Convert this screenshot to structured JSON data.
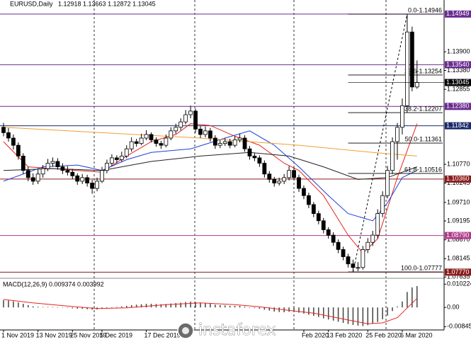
{
  "chart_data": [
    {
      "type": "candlestick",
      "title": "EURUSD,Daily",
      "subtitle": "1.12918 1.13663 1.12872 1.13045",
      "categories": [
        "1 Nov 2019",
        null,
        null,
        null,
        null,
        null,
        null,
        "13 Nov 2019",
        null,
        null,
        null,
        null,
        null,
        null,
        "25 Nov 2019",
        null,
        null,
        null,
        null,
        null,
        "5 Dec 2019",
        null,
        null,
        null,
        null,
        null,
        null,
        null,
        null,
        "17 Dec 2019",
        null,
        null,
        null,
        null,
        null,
        null,
        null,
        null,
        null,
        null,
        null,
        null,
        null,
        null,
        null,
        null,
        null,
        null,
        null,
        null,
        null,
        null,
        null,
        null,
        null,
        null,
        null,
        null,
        null,
        null,
        null,
        "Feb 2020",
        null,
        null,
        null,
        null,
        "13 Feb 2020",
        null,
        null,
        null,
        null,
        null,
        null,
        null,
        "25 Feb 2020",
        null,
        null,
        null,
        null,
        null,
        null,
        "6 Mar 2020",
        null,
        null,
        null
      ],
      "candles": [
        [
          1.118,
          1.1192,
          1.1155,
          1.1165
        ],
        [
          1.1165,
          1.1178,
          1.114,
          1.115
        ],
        [
          1.115,
          1.116,
          1.1118,
          1.113
        ],
        [
          1.113,
          1.1138,
          1.109,
          1.11
        ],
        [
          1.11,
          1.1108,
          1.105,
          1.106
        ],
        [
          1.106,
          1.107,
          1.103,
          1.104
        ],
        [
          1.104,
          1.1052,
          1.102,
          1.103
        ],
        [
          1.103,
          1.1062,
          1.1022,
          1.105
        ],
        [
          1.105,
          1.1075,
          1.104,
          1.1065
        ],
        [
          1.1065,
          1.1092,
          1.1058,
          1.108
        ],
        [
          1.108,
          1.1096,
          1.107,
          1.1085
        ],
        [
          1.1085,
          1.1094,
          1.1062,
          1.107
        ],
        [
          1.107,
          1.108,
          1.105,
          1.106
        ],
        [
          1.106,
          1.1072,
          1.1046,
          1.1055
        ],
        [
          1.1055,
          1.1064,
          1.1036,
          1.1045
        ],
        [
          1.1045,
          1.1052,
          1.102,
          1.103
        ],
        [
          1.103,
          1.105,
          1.1022,
          1.104
        ],
        [
          1.104,
          1.1048,
          1.1015,
          1.1025
        ],
        [
          1.1025,
          1.1034,
          1.0995,
          1.101
        ],
        [
          1.101,
          1.104,
          1.1002,
          1.103
        ],
        [
          1.103,
          1.107,
          1.1025,
          1.106
        ],
        [
          1.106,
          1.109,
          1.1052,
          1.108
        ],
        [
          1.108,
          1.1105,
          1.1072,
          1.1095
        ],
        [
          1.1095,
          1.1102,
          1.108,
          1.109
        ],
        [
          1.109,
          1.1112,
          1.1084,
          1.11
        ],
        [
          1.11,
          1.113,
          1.1094,
          1.112
        ],
        [
          1.112,
          1.1152,
          1.1112,
          1.114
        ],
        [
          1.114,
          1.1148,
          1.1126,
          1.1135
        ],
        [
          1.1135,
          1.1162,
          1.113,
          1.115
        ],
        [
          1.115,
          1.1172,
          1.1144,
          1.116
        ],
        [
          1.116,
          1.1166,
          1.1138,
          1.1145
        ],
        [
          1.1145,
          1.1152,
          1.1126,
          1.1135
        ],
        [
          1.1135,
          1.1142,
          1.112,
          1.113
        ],
        [
          1.113,
          1.116,
          1.1124,
          1.115
        ],
        [
          1.115,
          1.118,
          1.1144,
          1.117
        ],
        [
          1.117,
          1.119,
          1.1162,
          1.118
        ],
        [
          1.118,
          1.1205,
          1.1172,
          1.1195
        ],
        [
          1.1195,
          1.1228,
          1.1188,
          1.1215
        ],
        [
          1.1215,
          1.124,
          1.1205,
          1.1225
        ],
        [
          1.1225,
          1.1232,
          1.1165,
          1.1175
        ],
        [
          1.1175,
          1.1184,
          1.115,
          1.116
        ],
        [
          1.116,
          1.1182,
          1.1152,
          1.117
        ],
        [
          1.117,
          1.1178,
          1.114,
          1.115
        ],
        [
          1.115,
          1.1158,
          1.112,
          1.113
        ],
        [
          1.113,
          1.1145,
          1.1122,
          1.1135
        ],
        [
          1.1135,
          1.115,
          1.1128,
          1.114
        ],
        [
          1.114,
          1.1148,
          1.1122,
          1.113
        ],
        [
          1.113,
          1.1155,
          1.1124,
          1.1145
        ],
        [
          1.1145,
          1.1162,
          1.1138,
          1.115
        ],
        [
          1.115,
          1.1158,
          1.1112,
          1.112
        ],
        [
          1.112,
          1.1128,
          1.109,
          1.11
        ],
        [
          1.11,
          1.1108,
          1.1086,
          1.1095
        ],
        [
          1.1095,
          1.1102,
          1.107,
          1.108
        ],
        [
          1.108,
          1.1088,
          1.104,
          1.105
        ],
        [
          1.105,
          1.1058,
          1.1026,
          1.1035
        ],
        [
          1.1035,
          1.1042,
          1.1015,
          1.1025
        ],
        [
          1.1025,
          1.104,
          1.1018,
          1.103
        ],
        [
          1.103,
          1.105,
          1.1022,
          1.104
        ],
        [
          1.104,
          1.1072,
          1.1032,
          1.106
        ],
        [
          1.106,
          1.1068,
          1.1032,
          1.104
        ],
        [
          1.104,
          1.1048,
          1.1,
          1.101
        ],
        [
          1.101,
          1.1018,
          1.098,
          1.099
        ],
        [
          1.099,
          1.0998,
          1.0955,
          1.0965
        ],
        [
          1.0965,
          1.0972,
          1.093,
          1.094
        ],
        [
          1.094,
          1.0948,
          1.091,
          1.092
        ],
        [
          1.092,
          1.0928,
          1.0885,
          1.0895
        ],
        [
          1.0895,
          1.0902,
          1.087,
          1.088
        ],
        [
          1.088,
          1.0888,
          1.085,
          1.086
        ],
        [
          1.086,
          1.0868,
          1.083,
          1.084
        ],
        [
          1.084,
          1.0848,
          1.081,
          1.082
        ],
        [
          1.082,
          1.0828,
          1.079,
          1.08
        ],
        [
          1.08,
          1.0812,
          1.0778,
          1.079
        ],
        [
          1.079,
          1.0805,
          1.078,
          1.079
        ],
        [
          1.079,
          1.085,
          1.0784,
          1.084
        ],
        [
          1.084,
          1.0872,
          1.083,
          1.086
        ],
        [
          1.086,
          1.0892,
          1.085,
          1.088
        ],
        [
          1.088,
          1.0952,
          1.087,
          1.094
        ],
        [
          1.094,
          1.1002,
          1.093,
          1.099
        ],
        [
          1.099,
          1.1072,
          1.0982,
          1.106
        ],
        [
          1.106,
          1.1152,
          1.105,
          1.114
        ],
        [
          1.114,
          1.1192,
          1.109,
          1.118
        ],
        [
          1.118,
          1.126,
          1.116,
          1.124
        ],
        [
          1.124,
          1.1495,
          1.122,
          1.1445
        ],
        [
          1.1445,
          1.146,
          1.128,
          1.1292
        ],
        [
          1.1292,
          1.1366,
          1.1287,
          1.1305
        ]
      ],
      "up_color": "#ffffff",
      "down_color": "#000000",
      "series": [
        {
          "color": "#e8231e",
          "x": [
            0,
            5,
            10,
            15,
            20,
            25,
            30,
            35,
            38,
            42,
            47,
            52,
            57,
            60,
            65,
            70,
            73,
            76,
            80,
            84
          ],
          "values": [
            1.114,
            1.107,
            1.1065,
            1.106,
            1.1055,
            1.11,
            1.114,
            1.116,
            1.119,
            1.1185,
            1.1155,
            1.113,
            1.108,
            1.106,
            1.099,
            1.088,
            1.083,
            1.087,
            1.104,
            1.119
          ]
        },
        {
          "color": "#1f3fd6",
          "x": [
            0,
            8,
            15,
            20,
            25,
            30,
            38,
            45,
            50,
            55,
            60,
            66,
            70,
            75,
            78,
            81,
            84
          ],
          "values": [
            1.103,
            1.107,
            1.1075,
            1.106,
            1.109,
            1.111,
            1.112,
            1.115,
            1.117,
            1.113,
            1.107,
            1.099,
            1.094,
            1.092,
            1.097,
            1.104,
            1.106
          ]
        },
        {
          "color": "#222222",
          "x": [
            0,
            10,
            20,
            30,
            40,
            50,
            58,
            65,
            72,
            78,
            84
          ],
          "values": [
            1.106,
            1.1065,
            1.106,
            1.1085,
            1.11,
            1.111,
            1.11,
            1.107,
            1.1035,
            1.104,
            1.107
          ]
        },
        {
          "color": "#f0a030",
          "x": [
            0,
            20,
            40,
            60,
            75,
            84
          ],
          "values": [
            1.118,
            1.1165,
            1.115,
            1.113,
            1.111,
            1.11
          ]
        }
      ],
      "ylim": [
        1.0762,
        1.1534
      ],
      "yticks": [
        {
          "value": 1.139,
          "label": "1.13900"
        },
        {
          "value": 1.1338,
          "label": "1.13380"
        },
        1.12855,
        {
          "value": 1.1077,
          "label": "1.10770"
        },
        1.10245,
        {
          "value": 1.0971,
          "label": "1.09710"
        },
        1.09195,
        {
          "value": 1.0867,
          "label": "1.08670"
        },
        1.08145,
        1.07635
      ],
      "levels": [
        {
          "value": 1.14949,
          "label": "1.14949",
          "color": "#6a2c91"
        },
        {
          "value": 1.1354,
          "label": "1.13540",
          "color": "#6a2c91"
        },
        {
          "value": 1.1238,
          "label": "1.12380",
          "color": "#6a2c91"
        },
        {
          "value": 1.11842,
          "label": "1.11842",
          "color": "#1c2a6b"
        },
        {
          "value": 1.1036,
          "label": "1.10360",
          "color": "#8b1c1c"
        },
        {
          "value": 1.0879,
          "label": "1.08790",
          "color": "#b03a8a"
        },
        {
          "value": 1.0777,
          "label": "1.07770",
          "color": "#8b1c1c"
        }
      ],
      "last_price": {
        "value": 1.13045,
        "label": "1.13045"
      },
      "fibonacci": [
        {
          "value": 1.14946,
          "label": "0.0-1.14946"
        },
        {
          "value": 1.13254,
          "label": "23.6-1.13254"
        },
        {
          "value": 1.12207,
          "label": "38.2-1.12207"
        },
        {
          "value": 1.11361,
          "label": "50.0-1.11361"
        },
        {
          "value": 1.10516,
          "label": "61.8-1.10516"
        },
        {
          "value": 1.07777,
          "label": "100.0-1.07777"
        }
      ]
    },
    {
      "type": "macd",
      "title": "MACD(12,26,9) 0.009374 0.003992",
      "values": [
        0.0032,
        0.003,
        0.0027,
        0.0022,
        0.0016,
        0.001,
        0.0005,
        0.0003,
        0.0002,
        0.0002,
        0.0002,
        0.0001,
        0.0,
        -0.0002,
        -0.0004,
        -0.0006,
        -0.0006,
        -0.0008,
        -0.001,
        -0.0009,
        -0.0006,
        -0.0003,
        0.0,
        0.0002,
        0.0004,
        0.0007,
        0.001,
        0.0012,
        0.0014,
        0.0016,
        0.0016,
        0.0015,
        0.0014,
        0.0015,
        0.0017,
        0.0019,
        0.0021,
        0.0024,
        0.0026,
        0.0024,
        0.0021,
        0.0019,
        0.0016,
        0.0012,
        0.001,
        0.0009,
        0.0007,
        0.0007,
        0.0007,
        0.0004,
        0.0,
        -0.0003,
        -0.0006,
        -0.001,
        -0.0014,
        -0.0018,
        -0.002,
        -0.0021,
        -0.0019,
        -0.002,
        -0.0023,
        -0.0027,
        -0.0032,
        -0.0037,
        -0.0042,
        -0.0048,
        -0.0053,
        -0.0058,
        -0.0063,
        -0.0068,
        -0.0073,
        -0.0077,
        -0.008,
        -0.0082,
        -0.0078,
        -0.0072,
        -0.0064,
        -0.0052,
        -0.0036,
        -0.0016,
        0.0004,
        0.0026,
        0.0068,
        0.0088,
        0.0094
      ],
      "color": "#444444",
      "signal": {
        "color": "#e8231e",
        "x": [
          0,
          6,
          12,
          19,
          25,
          33,
          40,
          47,
          52,
          58,
          63,
          70,
          74,
          77,
          80,
          84
        ],
        "values": [
          0.0035,
          0.002,
          0.0008,
          -0.0005,
          -0.0002,
          0.0012,
          0.002,
          0.0012,
          0.0003,
          -0.0013,
          -0.0025,
          -0.0055,
          -0.0072,
          -0.0068,
          -0.0045,
          0.004
        ]
      },
      "ylim": [
        -0.0099,
        0.0125
      ],
      "yticks": [
        0.010224,
        {
          "value": 0,
          "label": "0.00"
        },
        -0.008457
      ]
    }
  ],
  "watermark": "instaforex"
}
